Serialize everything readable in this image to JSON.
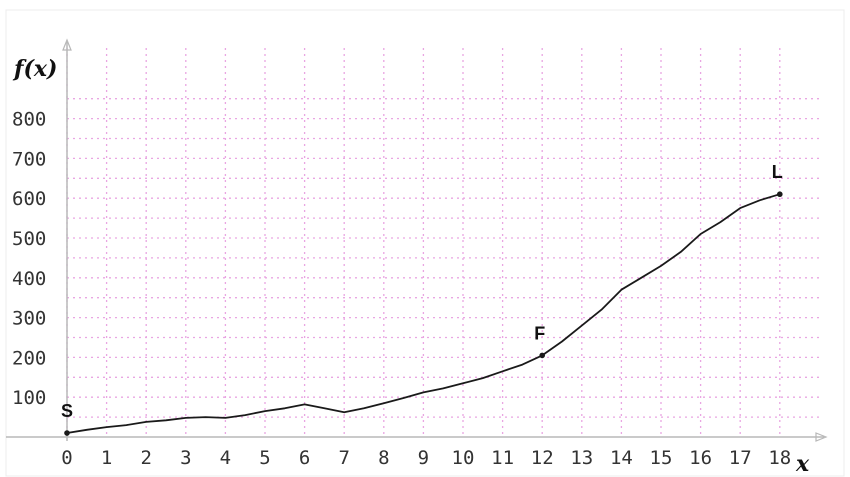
{
  "chart_data": {
    "type": "line",
    "title": "",
    "xlabel": "x",
    "ylabel": "f(x)",
    "xlim": [
      0,
      19
    ],
    "ylim": [
      0,
      900
    ],
    "x_ticks": [
      "0",
      "1",
      "2",
      "3",
      "4",
      "5",
      "6",
      "7",
      "8",
      "9",
      "10",
      "11",
      "12",
      "13",
      "14",
      "15",
      "16",
      "17",
      "18"
    ],
    "y_ticks": [
      "100",
      "200",
      "300",
      "400",
      "500",
      "600",
      "700",
      "800"
    ],
    "grid": true,
    "colors": {
      "line": "#1a1a1a",
      "grid": "#e9a6e2",
      "axis": "#b8b8b8",
      "background": "#ffffff"
    },
    "series": [
      {
        "x": [
          0,
          0.5,
          1,
          1.5,
          2,
          2.5,
          3,
          3.5,
          4,
          4.5,
          5,
          5.5,
          6,
          6.5,
          7,
          7.5,
          8,
          8.5,
          9,
          9.5,
          10,
          10.5,
          11,
          11.5,
          12,
          12.5,
          13,
          13.5,
          14,
          14.5,
          15,
          15.5,
          16,
          16.5,
          17,
          17.5,
          18
        ],
        "y": [
          10,
          18,
          25,
          30,
          38,
          42,
          48,
          50,
          48,
          55,
          65,
          72,
          82,
          72,
          62,
          72,
          85,
          98,
          112,
          122,
          135,
          148,
          165,
          182,
          205,
          240,
          280,
          320,
          370,
          400,
          430,
          465,
          510,
          540,
          575,
          595,
          610
        ]
      }
    ],
    "annotations": [
      {
        "text": "S",
        "x": 0,
        "y": 10
      },
      {
        "text": "F",
        "x": 12,
        "y": 205
      },
      {
        "text": "L",
        "x": 18,
        "y": 610
      }
    ]
  }
}
